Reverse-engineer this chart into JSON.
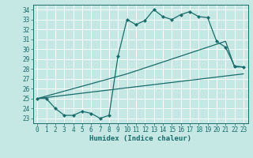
{
  "title": "",
  "xlabel": "Humidex (Indice chaleur)",
  "ylabel_ticks": [
    23,
    24,
    25,
    26,
    27,
    28,
    29,
    30,
    31,
    32,
    33,
    34
  ],
  "xticks": [
    0,
    1,
    2,
    3,
    4,
    5,
    6,
    7,
    8,
    9,
    10,
    11,
    12,
    13,
    14,
    15,
    16,
    17,
    18,
    19,
    20,
    21,
    22,
    23
  ],
  "xlim": [
    -0.5,
    23.5
  ],
  "ylim": [
    22.5,
    34.5
  ],
  "bg_color": "#c5e8e5",
  "line_color": "#1a6b6b",
  "grid_color": "#ffffff",
  "line1_x": [
    0,
    1,
    2,
    3,
    4,
    5,
    6,
    7,
    8,
    9,
    10,
    11,
    12,
    13,
    14,
    15,
    16,
    17,
    18,
    19,
    20,
    21,
    22,
    23
  ],
  "line1_y": [
    25.0,
    25.0,
    24.0,
    23.3,
    23.3,
    23.7,
    23.5,
    23.0,
    23.3,
    29.3,
    33.0,
    32.5,
    32.9,
    34.0,
    33.3,
    33.0,
    33.5,
    33.8,
    33.3,
    33.2,
    30.8,
    30.2,
    28.3,
    28.2
  ],
  "line2_x": [
    0,
    10,
    20,
    21,
    22,
    23
  ],
  "line2_y": [
    25.0,
    27.5,
    30.5,
    30.8,
    28.2,
    28.2
  ],
  "line3_x": [
    0,
    23
  ],
  "line3_y": [
    25.0,
    27.5
  ],
  "marker_size": 2.5,
  "tick_fontsize": 5.5,
  "xlabel_fontsize": 6.5
}
